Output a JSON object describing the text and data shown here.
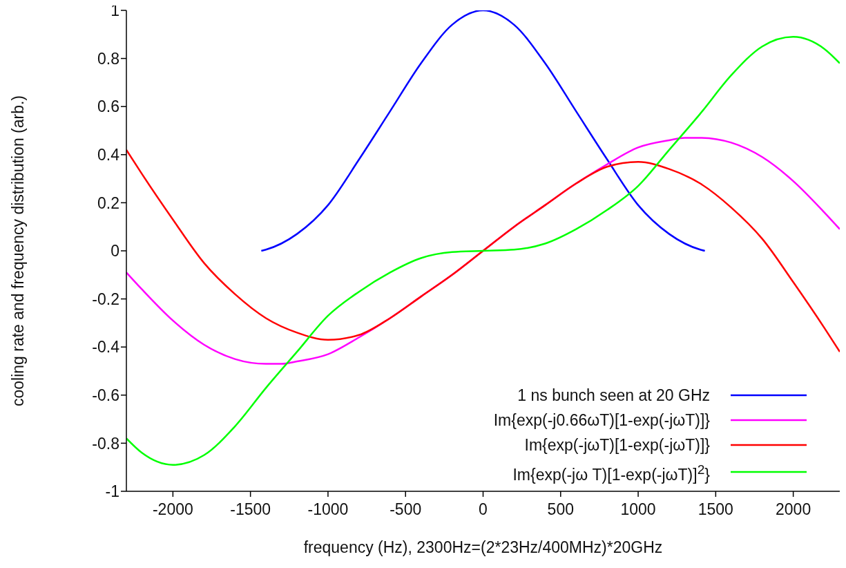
{
  "chart_data": {
    "type": "line",
    "xlabel": "frequency (Hz), 2300Hz=(2*23Hz/400MHz)*20GHz",
    "ylabel": "cooling rate and frequency distribution (arb.)",
    "xlim": [
      -2300,
      2300
    ],
    "xticks": [
      -2000,
      -1500,
      -1000,
      -500,
      0,
      500,
      1000,
      1500,
      2000
    ],
    "ylim": [
      -1,
      1
    ],
    "yticks": [
      -1,
      -0.8,
      -0.6,
      -0.4,
      -0.2,
      0,
      0.2,
      0.4,
      0.6,
      0.8,
      1
    ],
    "grid": false,
    "legend": "bottom right",
    "marker": "none",
    "line_style": "solid",
    "series": [
      {
        "name": "1 ns bunch seen at 20 GHz",
        "color": "#0000ff",
        "x": [
          -1430,
          -1400,
          -1200,
          -1000,
          -800,
          -600,
          -400,
          -200,
          0,
          200,
          400,
          600,
          800,
          1000,
          1200,
          1400,
          1430
        ],
        "values": [
          0,
          0.005,
          0.07,
          0.19,
          0.38,
          0.58,
          0.78,
          0.94,
          1,
          0.94,
          0.78,
          0.58,
          0.38,
          0.19,
          0.07,
          0.005,
          0
        ]
      },
      {
        "name": "Im{exp(-j0.66ωT)[1-exp(-jωT)]}",
        "color": "#ff00ff",
        "x": [
          -2300,
          -2200,
          -2000,
          -1800,
          -1600,
          -1400,
          -1300,
          -1200,
          -1000,
          -800,
          -600,
          -400,
          -200,
          0,
          200,
          400,
          600,
          800,
          1000,
          1200,
          1300,
          1400,
          1600,
          1800,
          2000,
          2200,
          2300
        ],
        "values": [
          -0.09,
          -0.16,
          -0.29,
          -0.39,
          -0.45,
          -0.47,
          -0.47,
          -0.46,
          -0.43,
          -0.36,
          -0.28,
          -0.19,
          -0.1,
          0,
          0.1,
          0.19,
          0.28,
          0.36,
          0.43,
          0.46,
          0.47,
          0.47,
          0.45,
          0.39,
          0.29,
          0.16,
          0.09
        ]
      },
      {
        "name": "Im{exp(-jωT)[1-exp(-jωT)]}",
        "color": "#ff0000",
        "x": [
          -2300,
          -2200,
          -2000,
          -1800,
          -1600,
          -1400,
          -1200,
          -1000,
          -800,
          -600,
          -400,
          -200,
          0,
          200,
          400,
          600,
          800,
          1000,
          1200,
          1400,
          1600,
          1800,
          2000,
          2200,
          2300
        ],
        "values": [
          0.42,
          0.32,
          0.13,
          -0.05,
          -0.18,
          -0.28,
          -0.34,
          -0.37,
          -0.35,
          -0.28,
          -0.19,
          -0.1,
          0,
          0.1,
          0.19,
          0.28,
          0.35,
          0.37,
          0.34,
          0.28,
          0.18,
          0.05,
          -0.13,
          -0.32,
          -0.42
        ]
      },
      {
        "name": "Im{exp(-jω T)[1-exp(-jωT)]$^{2}$}",
        "color": "#00ff00",
        "x": [
          -2300,
          -2200,
          -2000,
          -1800,
          -1600,
          -1400,
          -1200,
          -1000,
          -800,
          -600,
          -400,
          -200,
          0,
          200,
          400,
          600,
          800,
          1000,
          1200,
          1400,
          1600,
          1800,
          2000,
          2200,
          2300
        ],
        "values": [
          -0.78,
          -0.84,
          -0.89,
          -0.85,
          -0.73,
          -0.57,
          -0.42,
          -0.27,
          -0.17,
          -0.09,
          -0.03,
          -0.005,
          0,
          0.005,
          0.03,
          0.09,
          0.17,
          0.27,
          0.42,
          0.57,
          0.73,
          0.85,
          0.89,
          0.84,
          0.78
        ]
      }
    ]
  }
}
